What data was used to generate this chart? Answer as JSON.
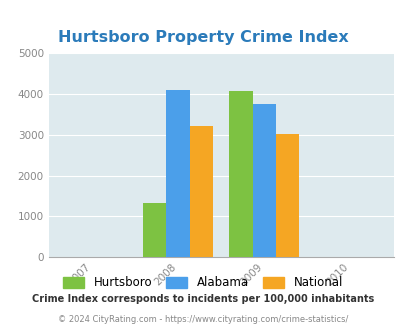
{
  "title": "Hurtsboro Property Crime Index",
  "bar_groups": {
    "2008": {
      "Hurtsboro": 1320,
      "Alabama": 4090,
      "National": 3200
    },
    "2009": {
      "Hurtsboro": 4070,
      "Alabama": 3760,
      "National": 3010
    }
  },
  "series_colors": {
    "Hurtsboro": "#7dc242",
    "Alabama": "#4b9fea",
    "National": "#f5a623"
  },
  "ylim": [
    0,
    5000
  ],
  "yticks": [
    0,
    1000,
    2000,
    3000,
    4000,
    5000
  ],
  "xlim": [
    2006.5,
    2010.5
  ],
  "xticks": [
    2007,
    2008,
    2009,
    2010
  ],
  "bar_width": 0.27,
  "figure_bg_color": "#ffffff",
  "plot_bg_color": "#deeaee",
  "title_color": "#2b7bba",
  "title_fontsize": 11.5,
  "legend_labels": [
    "Hurtsboro",
    "Alabama",
    "National"
  ],
  "footnote1": "Crime Index corresponds to incidents per 100,000 inhabitants",
  "footnote2": "© 2024 CityRating.com - https://www.cityrating.com/crime-statistics/",
  "tick_label_color": "#888888",
  "grid_color": "#ffffff",
  "axis_color": "#aaaaaa"
}
